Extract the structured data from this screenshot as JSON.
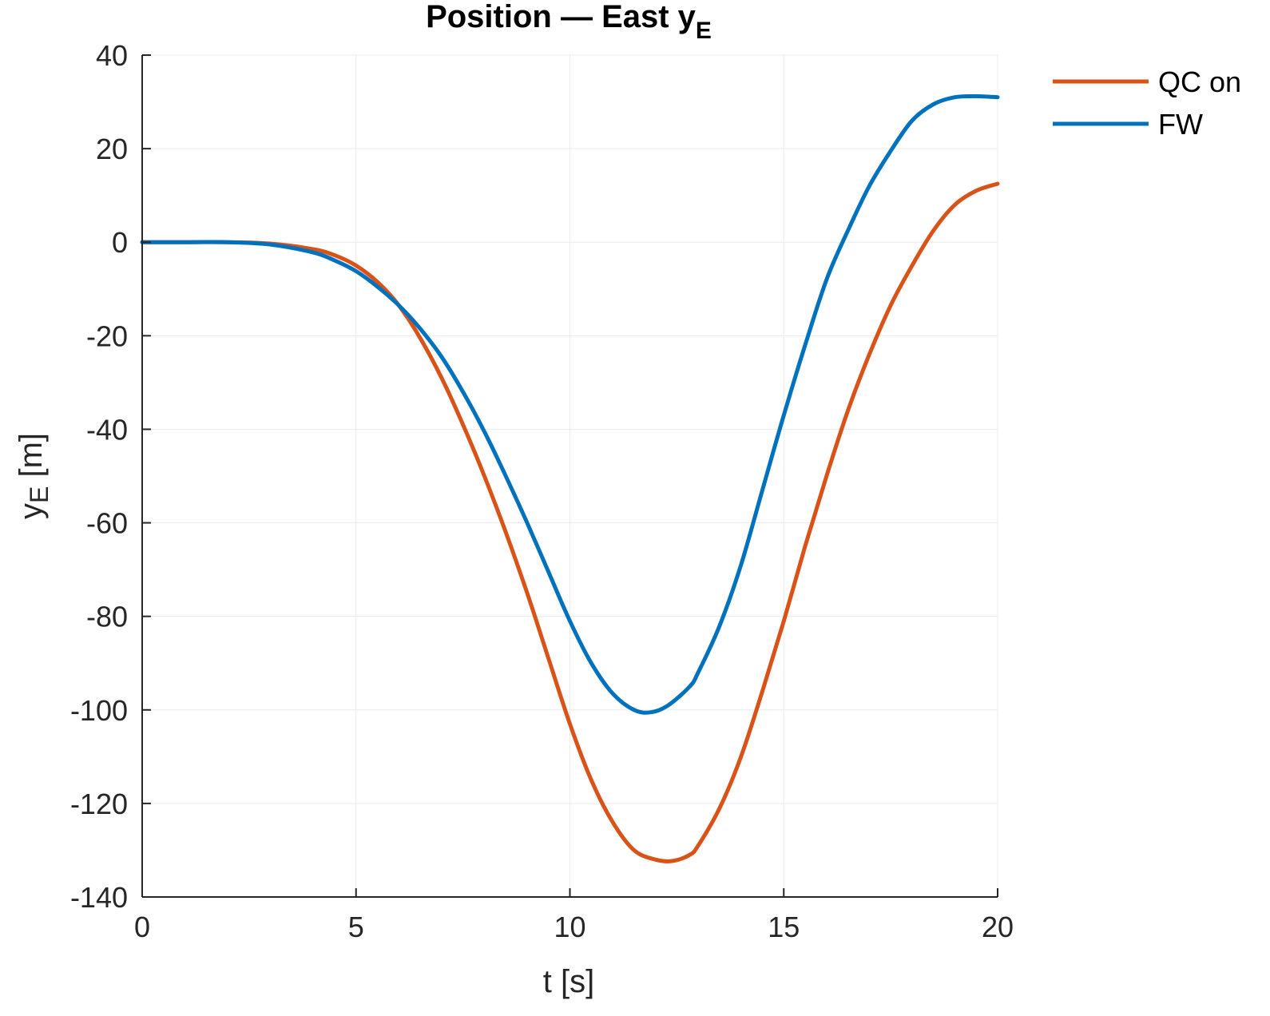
{
  "chart_data": {
    "type": "line",
    "title": "Position — East y",
    "title_subscript": "E",
    "xlabel": "t [s]",
    "ylabel_main": "y",
    "ylabel_sub": "E",
    "ylabel_unit": " [m]",
    "xlim": [
      0,
      20
    ],
    "ylim": [
      -140,
      40
    ],
    "xticks": [
      0,
      5,
      10,
      15,
      20
    ],
    "yticks": [
      -140,
      -120,
      -100,
      -80,
      -60,
      -40,
      -20,
      0,
      20,
      40
    ],
    "grid": true,
    "legend_position": "top-right",
    "series": [
      {
        "name": "QC on",
        "color": "#D95319",
        "x": [
          0,
          1,
          2,
          3,
          4,
          4.5,
          5,
          5.5,
          6,
          6.5,
          7,
          7.5,
          8,
          8.5,
          9,
          9.5,
          10,
          10.5,
          11,
          11.5,
          12,
          12.4,
          12.8,
          13,
          13.5,
          14,
          14.5,
          15,
          15.5,
          16,
          16.5,
          17,
          17.5,
          18,
          18.5,
          19,
          19.5,
          20
        ],
        "y": [
          0,
          0,
          0,
          -0.3,
          -1.5,
          -2.8,
          -5,
          -8.5,
          -13.5,
          -20.5,
          -29,
          -39,
          -50,
          -62,
          -75,
          -89,
          -103,
          -115,
          -124,
          -130,
          -132,
          -132.3,
          -131,
          -129,
          -121,
          -110,
          -96,
          -81,
          -65,
          -50,
          -36,
          -24,
          -13.5,
          -5,
          2.5,
          8,
          11,
          12.5
        ]
      },
      {
        "name": "FW",
        "color": "#0072BD",
        "x": [
          0,
          1,
          2,
          3,
          4,
          4.5,
          5,
          5.5,
          6,
          6.5,
          7,
          7.5,
          8,
          8.5,
          9,
          9.5,
          10,
          10.5,
          11,
          11.5,
          11.9,
          12.3,
          12.8,
          13,
          13.5,
          14,
          14.5,
          15,
          15.5,
          16,
          16.5,
          17,
          17.5,
          18,
          18.5,
          19,
          19.5,
          20
        ],
        "y": [
          0,
          0,
          0,
          -0.5,
          -2.2,
          -3.9,
          -6.2,
          -9.5,
          -13.5,
          -18.5,
          -24.5,
          -32,
          -40.5,
          -50,
          -60,
          -70.5,
          -81,
          -90,
          -96.5,
          -100,
          -100.5,
          -99,
          -95,
          -92,
          -82,
          -69,
          -53,
          -37,
          -22,
          -8,
          2.5,
          12,
          19.5,
          26,
          29.5,
          31,
          31.2,
          31
        ]
      }
    ]
  }
}
